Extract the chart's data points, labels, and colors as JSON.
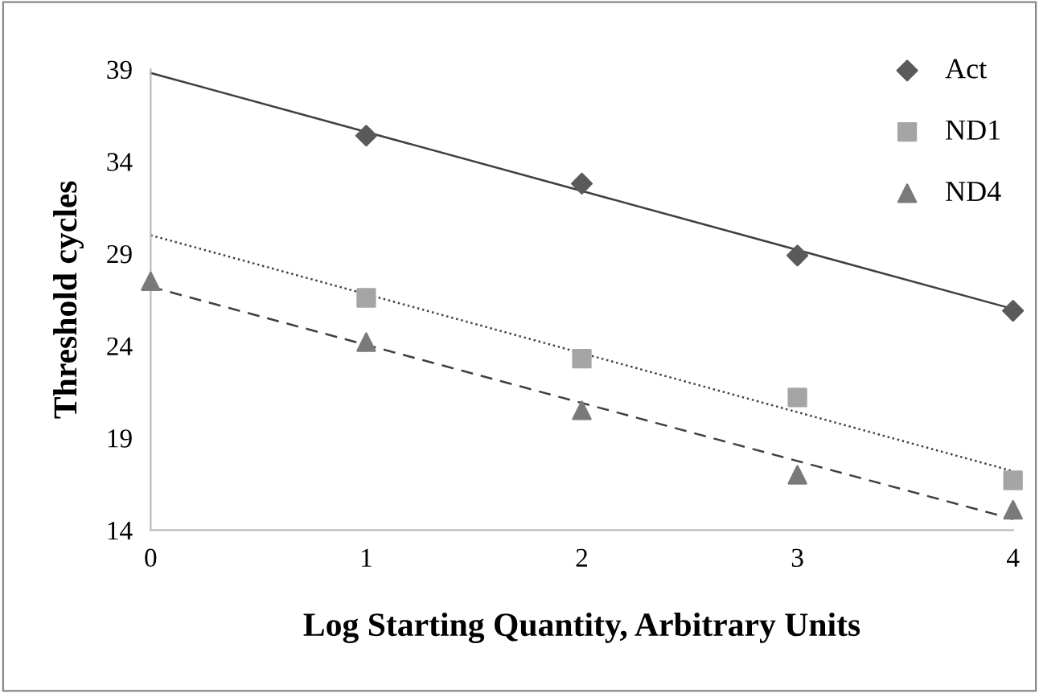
{
  "chart_data": {
    "type": "scatter",
    "xlabel": "Log Starting Quantity, Arbitrary Units",
    "ylabel": "Threshold cycles",
    "xlim": [
      0,
      4
    ],
    "xticks": [
      0,
      1,
      2,
      3,
      4
    ],
    "ylim": [
      14,
      39
    ],
    "yticks": [
      14,
      19,
      24,
      29,
      34,
      39
    ],
    "grid": false,
    "legend": "top right",
    "series": [
      {
        "name": "Act",
        "color": "#5a5a5a",
        "marker": "diamond",
        "x": [
          1,
          2,
          3,
          4
        ],
        "values": [
          35.4,
          32.8,
          28.9,
          25.9
        ]
      },
      {
        "name": "ND1",
        "color": "#a5a5a5",
        "marker": "square",
        "x": [
          1,
          2,
          3,
          4
        ],
        "values": [
          26.6,
          23.3,
          21.2,
          16.7
        ]
      },
      {
        "name": "ND4",
        "color": "#7a7a7a",
        "marker": "triangle",
        "x": [
          0,
          1,
          2,
          3,
          4
        ],
        "values": [
          27.5,
          24.2,
          20.5,
          17.0,
          15.1
        ]
      },
      {
        "type": "line",
        "color": "#404040",
        "line_style": "solid",
        "x": [
          0,
          4
        ],
        "values": [
          38.8,
          26.0
        ]
      },
      {
        "type": "line",
        "color": "#404040",
        "line_style": "dotted",
        "x": [
          0,
          4
        ],
        "values": [
          30.0,
          17.2
        ]
      },
      {
        "type": "line",
        "color": "#404040",
        "line_style": "dashed",
        "x": [
          0,
          4
        ],
        "values": [
          27.2,
          14.6
        ]
      }
    ]
  }
}
